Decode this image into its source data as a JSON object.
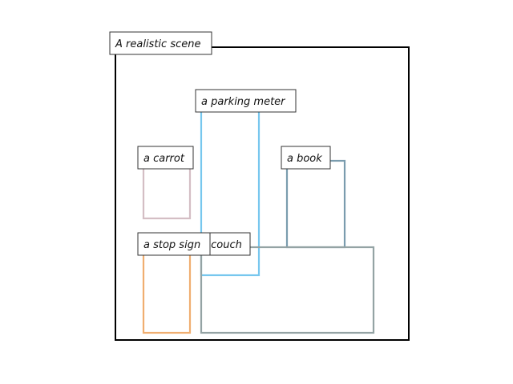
{
  "scene": {
    "title": "A realistic scene"
  },
  "objects": [
    {
      "id": "parking-meter",
      "label": "a parking meter",
      "color": "#77c7ee"
    },
    {
      "id": "carrot",
      "label": "a carrot",
      "color": "#d4bec4"
    },
    {
      "id": "book",
      "label": "a book",
      "color": "#7a9cae"
    },
    {
      "id": "couch",
      "label": "a couch",
      "color": "#94a3a4"
    },
    {
      "id": "stop-sign",
      "label": "a stop sign",
      "color": "#f0ae70"
    }
  ]
}
